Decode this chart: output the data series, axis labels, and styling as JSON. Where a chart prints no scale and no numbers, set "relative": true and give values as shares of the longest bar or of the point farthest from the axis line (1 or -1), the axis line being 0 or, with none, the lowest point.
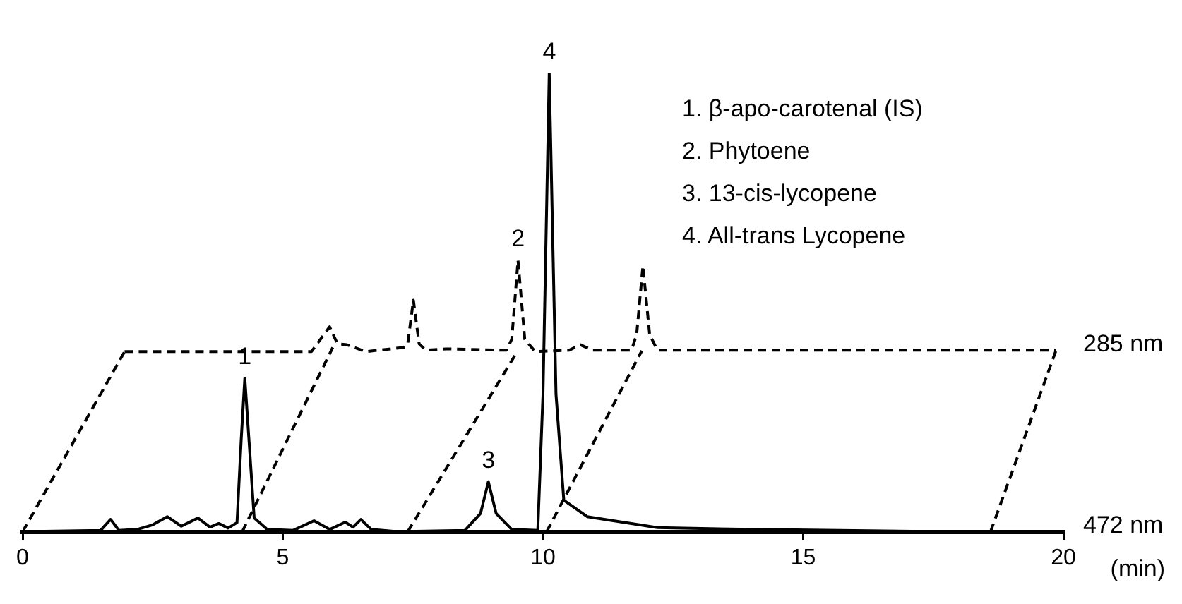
{
  "chart_data": {
    "type": "line",
    "relative": true,
    "xlabel": "(min)",
    "xlim": [
      0,
      20
    ],
    "xticks": [
      0,
      5,
      10,
      15,
      20
    ],
    "grid": false,
    "legend": false,
    "marker": "none",
    "annotations": [
      "1. β-apo-carotenal (IS)",
      "2. Phytoene",
      "3. 13-cis-lycopene",
      "4. All-trans Lycopene",
      {
        "text": "1",
        "x": 4.27,
        "y": 0.335
      },
      {
        "text": "2",
        "x": 9.52,
        "y": 0.592
      },
      {
        "text": "3",
        "x": 8.95,
        "y": 0.109
      },
      {
        "text": "4",
        "x": 10.12,
        "y": 1
      }
    ],
    "series": [
      {
        "name": "472 nm",
        "color": "#000000",
        "line_style": "solid",
        "x": [
          0,
          1.5,
          1.69,
          1.85,
          2.2,
          2.5,
          2.78,
          3.05,
          3.37,
          3.6,
          3.77,
          3.95,
          4.12,
          4.2,
          4.27,
          4.35,
          4.45,
          4.7,
          5.2,
          5.6,
          5.9,
          6.2,
          6.35,
          6.5,
          6.7,
          7.2,
          8.5,
          8.8,
          8.95,
          9.1,
          9.4,
          9.9,
          10.0,
          10.12,
          10.25,
          10.4,
          10.85,
          12.2,
          14,
          17.7
        ],
        "values": [
          0,
          0.003,
          0.027,
          0.003,
          0.005,
          0.015,
          0.033,
          0.012,
          0.03,
          0.01,
          0.018,
          0.008,
          0.02,
          0.2,
          0.335,
          0.2,
          0.03,
          0.005,
          0.003,
          0.024,
          0.005,
          0.021,
          0.01,
          0.027,
          0.005,
          0,
          0.003,
          0.04,
          0.109,
          0.04,
          0.005,
          0.003,
          0.3,
          1,
          0.3,
          0.069,
          0.033,
          0.009,
          0.005,
          0
        ]
      },
      {
        "name": "285 nm",
        "color": "#000000",
        "line_style": "dashed",
        "x": [
          1.96,
          5.55,
          5.66,
          5.9,
          6.05,
          6.23,
          6.59,
          7.32,
          7.4,
          7.51,
          7.62,
          7.75,
          8.13,
          9.3,
          9.4,
          9.52,
          9.65,
          9.85,
          10.5,
          10.72,
          10.95,
          11.7,
          11.8,
          11.92,
          12.05,
          12.2,
          19.86
        ],
        "values": [
          0.393,
          0.393,
          0.41,
          0.447,
          0.41,
          0.408,
          0.393,
          0.402,
          0.41,
          0.505,
          0.41,
          0.396,
          0.399,
          0.396,
          0.42,
          0.592,
          0.42,
          0.393,
          0.396,
          0.408,
          0.396,
          0.396,
          0.43,
          0.58,
          0.43,
          0.396,
          0.396
        ]
      },
      {
        "color": "#000000",
        "line_style": "dashed",
        "x": [
          0,
          1.96,
          null,
          4.22,
          5.96,
          null,
          7.4,
          9.5,
          null,
          10.07,
          11.9,
          null,
          18.6,
          19.86
        ],
        "values": [
          0,
          0.393,
          null,
          0,
          0.402,
          null,
          0,
          0.392,
          null,
          0,
          0.395,
          null,
          0,
          0.396
        ]
      }
    ]
  }
}
